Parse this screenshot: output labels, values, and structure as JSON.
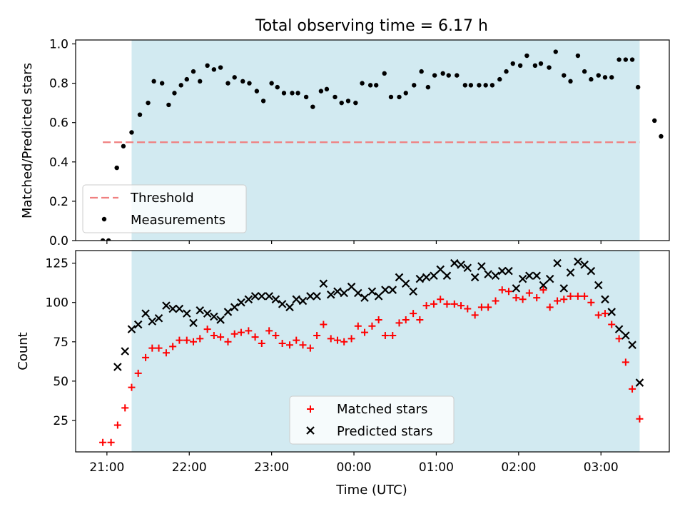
{
  "title": "Total observing time = 6.17 h",
  "colors": {
    "shade": "#add8e6",
    "threshold": "#f08080",
    "measurements": "#000000",
    "matched": "#ff0000",
    "predicted": "#000000"
  },
  "chart_data": [
    {
      "type": "scatter",
      "ylabel": "Matched/Predicted stars",
      "ylim": [
        0,
        1.02
      ],
      "yticks": [
        0.0,
        0.2,
        0.4,
        0.6,
        0.8,
        1.0
      ],
      "ytick_labels": [
        "0.0",
        "0.2",
        "0.4",
        "0.6",
        "0.8",
        "1.0"
      ],
      "xlim": [
        -0.38,
        6.83
      ],
      "shaded_span": [
        0.3,
        6.47
      ],
      "threshold": {
        "name": "Threshold",
        "y": 0.5,
        "x": [
          -0.05,
          6.47
        ]
      },
      "legend": {
        "placement": "lower-left",
        "entries": [
          "Threshold",
          "Measurements"
        ]
      },
      "series": [
        {
          "name": "Measurements",
          "x": [
            -0.05,
            0.02,
            0.12,
            0.2,
            0.3,
            0.4,
            0.5,
            0.57,
            0.67,
            0.75,
            0.82,
            0.9,
            0.97,
            1.05,
            1.13,
            1.22,
            1.3,
            1.38,
            1.47,
            1.55,
            1.65,
            1.73,
            1.82,
            1.9,
            2.0,
            2.07,
            2.15,
            2.25,
            2.32,
            2.42,
            2.5,
            2.6,
            2.67,
            2.77,
            2.85,
            2.93,
            3.02,
            3.1,
            3.2,
            3.27,
            3.37,
            3.45,
            3.55,
            3.63,
            3.73,
            3.82,
            3.9,
            3.98,
            4.08,
            4.15,
            4.25,
            4.35,
            4.42,
            4.52,
            4.6,
            4.68,
            4.77,
            4.85,
            4.93,
            5.02,
            5.1,
            5.2,
            5.27,
            5.37,
            5.45,
            5.55,
            5.63,
            5.72,
            5.8,
            5.88,
            5.97,
            6.05,
            6.13,
            6.22,
            6.3,
            6.38,
            6.45
          ],
          "y": [
            0.0,
            0.0,
            0.37,
            0.48,
            0.55,
            0.64,
            0.7,
            0.81,
            0.8,
            0.69,
            0.75,
            0.79,
            0.82,
            0.86,
            0.81,
            0.89,
            0.87,
            0.88,
            0.8,
            0.83,
            0.81,
            0.8,
            0.76,
            0.71,
            0.8,
            0.78,
            0.75,
            0.75,
            0.75,
            0.73,
            0.68,
            0.76,
            0.77,
            0.73,
            0.7,
            0.71,
            0.7,
            0.8,
            0.79,
            0.79,
            0.85,
            0.73,
            0.73,
            0.75,
            0.79,
            0.86,
            0.78,
            0.84,
            0.85,
            0.84,
            0.84,
            0.79,
            0.79,
            0.79,
            0.79,
            0.79,
            0.82,
            0.86,
            0.9,
            0.89,
            0.94,
            0.89,
            0.9,
            0.88,
            0.96,
            0.84,
            0.81,
            0.94,
            0.86,
            0.82,
            0.84,
            0.83,
            0.83,
            0.92,
            0.92,
            0.92,
            0.78
          ]
        }
      ],
      "extra_points": {
        "x": [
          6.65,
          6.73
        ],
        "y": [
          0.61,
          0.53
        ]
      }
    },
    {
      "type": "scatter",
      "xlabel": "Time (UTC)",
      "ylabel": "Count",
      "ylim": [
        5,
        133
      ],
      "yticks": [
        25,
        50,
        75,
        100,
        125
      ],
      "ytick_labels": [
        "25",
        "50",
        "75",
        "100",
        "125"
      ],
      "xlim": [
        -0.38,
        6.83
      ],
      "xticks": [
        0,
        1,
        2,
        3,
        4,
        5,
        6
      ],
      "xtick_labels": [
        "21:00",
        "22:00",
        "23:00",
        "00:00",
        "01:00",
        "02:00",
        "03:00"
      ],
      "shaded_span": [
        0.3,
        6.47
      ],
      "legend": {
        "placement": "lower-center",
        "entries": [
          "Matched stars",
          "Predicted stars"
        ]
      },
      "series": [
        {
          "name": "Matched stars",
          "x": [
            -0.05,
            0.05,
            0.13,
            0.22,
            0.3,
            0.38,
            0.47,
            0.55,
            0.63,
            0.72,
            0.8,
            0.88,
            0.97,
            1.05,
            1.13,
            1.22,
            1.3,
            1.38,
            1.47,
            1.55,
            1.63,
            1.72,
            1.8,
            1.88,
            1.97,
            2.05,
            2.13,
            2.22,
            2.3,
            2.38,
            2.47,
            2.55,
            2.63,
            2.72,
            2.8,
            2.88,
            2.97,
            3.05,
            3.13,
            3.22,
            3.3,
            3.38,
            3.47,
            3.55,
            3.63,
            3.72,
            3.8,
            3.88,
            3.97,
            4.05,
            4.13,
            4.22,
            4.3,
            4.38,
            4.47,
            4.55,
            4.63,
            4.72,
            4.8,
            4.88,
            4.97,
            5.05,
            5.13,
            5.22,
            5.3,
            5.38,
            5.47,
            5.55,
            5.63,
            5.72,
            5.8,
            5.88,
            5.97,
            6.05,
            6.13,
            6.22,
            6.3,
            6.38,
            6.47
          ],
          "y": [
            11,
            11,
            22,
            33,
            46,
            55,
            65,
            71,
            71,
            68,
            72,
            76,
            76,
            75,
            77,
            83,
            79,
            78,
            75,
            80,
            81,
            82,
            78,
            74,
            82,
            79,
            74,
            73,
            76,
            73,
            71,
            79,
            86,
            77,
            76,
            75,
            77,
            85,
            81,
            85,
            89,
            79,
            79,
            87,
            89,
            93,
            89,
            98,
            99,
            102,
            99,
            99,
            98,
            96,
            92,
            97,
            97,
            101,
            108,
            107,
            103,
            102,
            106,
            103,
            108,
            97,
            101,
            102,
            104,
            104,
            104,
            100,
            92,
            93,
            86,
            77,
            62,
            45,
            26
          ]
        },
        {
          "name": "Predicted stars",
          "x": [
            0.13,
            0.22,
            0.3,
            0.38,
            0.47,
            0.55,
            0.63,
            0.72,
            0.8,
            0.88,
            0.97,
            1.05,
            1.13,
            1.22,
            1.3,
            1.38,
            1.47,
            1.55,
            1.63,
            1.72,
            1.8,
            1.88,
            1.97,
            2.05,
            2.13,
            2.22,
            2.3,
            2.38,
            2.47,
            2.55,
            2.63,
            2.72,
            2.8,
            2.88,
            2.97,
            3.05,
            3.13,
            3.22,
            3.3,
            3.38,
            3.47,
            3.55,
            3.63,
            3.72,
            3.8,
            3.88,
            3.97,
            4.05,
            4.13,
            4.22,
            4.3,
            4.38,
            4.47,
            4.55,
            4.63,
            4.72,
            4.8,
            4.88,
            4.97,
            5.05,
            5.13,
            5.22,
            5.3,
            5.38,
            5.47,
            5.55,
            5.63,
            5.72,
            5.8,
            5.88,
            5.97,
            6.05,
            6.13,
            6.22,
            6.3,
            6.38,
            6.47
          ],
          "y": [
            59,
            69,
            83,
            86,
            93,
            88,
            90,
            98,
            96,
            96,
            93,
            87,
            95,
            93,
            91,
            89,
            94,
            97,
            100,
            102,
            104,
            104,
            104,
            102,
            99,
            97,
            102,
            101,
            104,
            104,
            112,
            105,
            107,
            106,
            110,
            106,
            103,
            107,
            104,
            108,
            108,
            116,
            112,
            107,
            115,
            116,
            117,
            121,
            117,
            125,
            124,
            122,
            116,
            123,
            118,
            117,
            120,
            120,
            109,
            115,
            117,
            117,
            111,
            115,
            125,
            109,
            119,
            126,
            124,
            120,
            111,
            102,
            94,
            83,
            79,
            73,
            49
          ]
        }
      ]
    }
  ]
}
